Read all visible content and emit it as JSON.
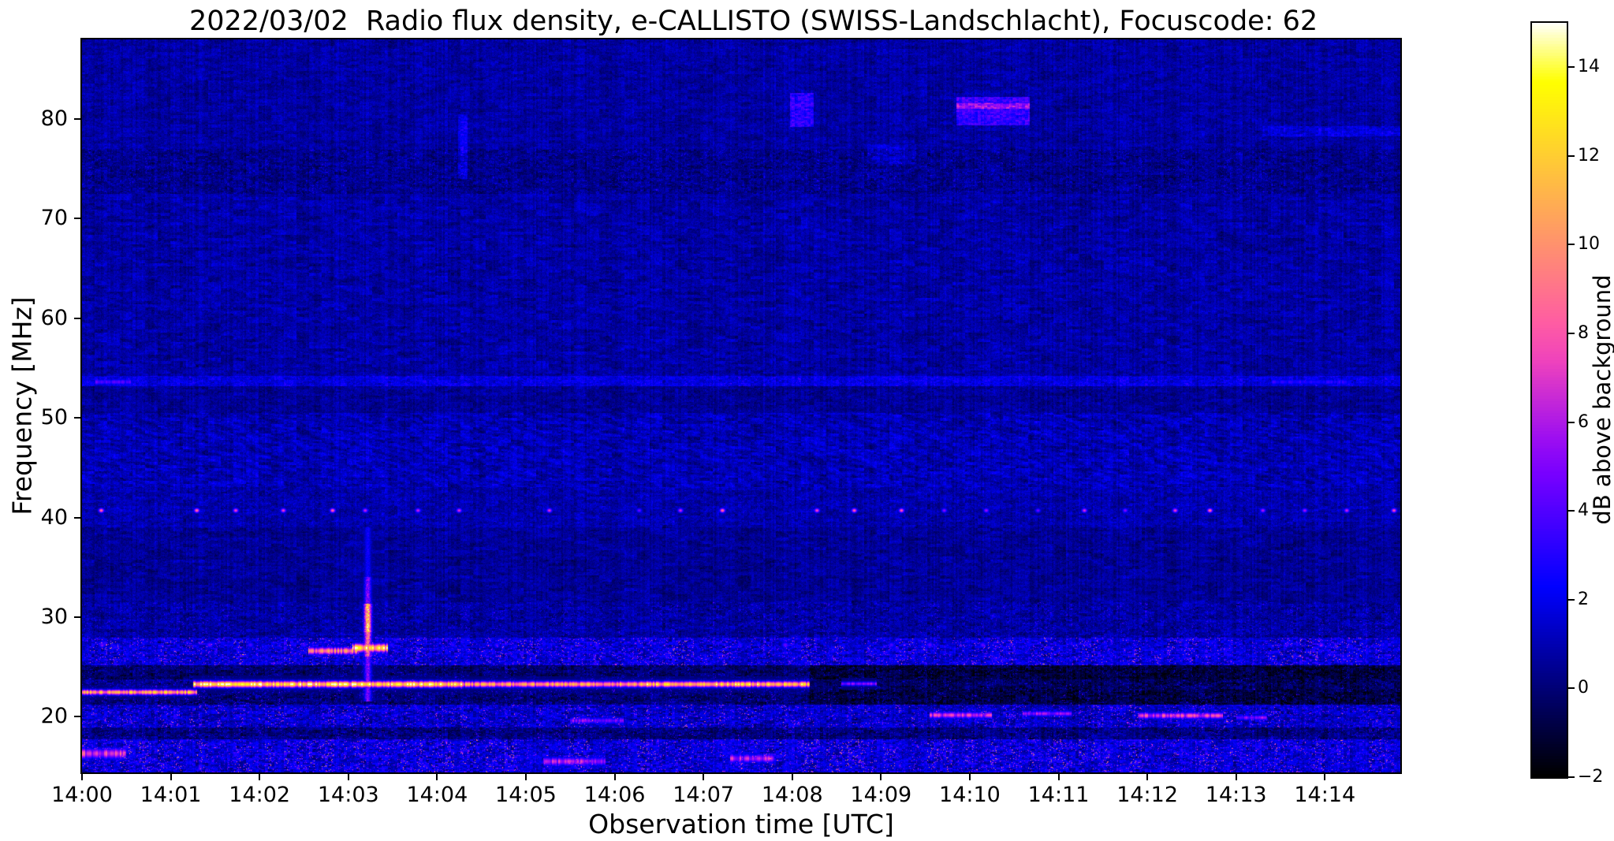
{
  "figure": {
    "title": "2022/03/02  Radio flux density, e-CALLISTO (SWISS-Landschlacht), Focuscode: 62",
    "xlabel": "Observation time [UTC]",
    "ylabel": "Frequency [MHz]",
    "colorbar_label": "dB above background",
    "text_color": "#000000",
    "background_color": "#ffffff"
  },
  "chart_data": {
    "type": "heatmap",
    "title": "2022/03/02  Radio flux density, e-CALLISTO (SWISS-Landschlacht), Focuscode: 62",
    "xlabel": "Observation time [UTC]",
    "ylabel": "Frequency [MHz]",
    "grid": false,
    "x_ticks": [
      "14:00",
      "14:01",
      "14:02",
      "14:03",
      "14:04",
      "14:05",
      "14:06",
      "14:07",
      "14:08",
      "14:09",
      "14:10",
      "14:11",
      "14:12",
      "14:13",
      "14:14"
    ],
    "x_tick_minutes": [
      0,
      1,
      2,
      3,
      4,
      5,
      6,
      7,
      8,
      9,
      10,
      11,
      12,
      13,
      14
    ],
    "x_range_minutes": [
      0,
      14.85
    ],
    "y_ticks": [
      20,
      30,
      40,
      50,
      60,
      70,
      80
    ],
    "y_range_mhz": [
      14.4,
      88.0
    ],
    "colorbar": {
      "label": "dB above background",
      "ticks": [
        14,
        12,
        10,
        8,
        6,
        4,
        2,
        0,
        -2
      ],
      "tick_labels": [
        "14",
        "12",
        "10",
        "8",
        "6",
        "4",
        "2",
        "0",
        "−2"
      ],
      "range_db": [
        -2,
        15
      ],
      "colormap": "gnuplot2",
      "stops": [
        [
          0.0,
          0,
          0,
          0
        ],
        [
          0.05,
          0,
          0,
          51
        ],
        [
          0.1,
          0,
          0,
          102
        ],
        [
          0.15,
          0,
          0,
          153
        ],
        [
          0.2,
          0,
          0,
          204
        ],
        [
          0.25,
          0,
          0,
          255
        ],
        [
          0.3,
          40,
          0,
          255
        ],
        [
          0.35,
          80,
          0,
          255
        ],
        [
          0.4,
          120,
          0,
          255
        ],
        [
          0.45,
          159,
          15,
          240
        ],
        [
          0.5,
          199,
          41,
          214
        ],
        [
          0.55,
          239,
          66,
          189
        ],
        [
          0.6,
          255,
          92,
          163
        ],
        [
          0.65,
          255,
          117,
          138
        ],
        [
          0.7,
          255,
          143,
          112
        ],
        [
          0.75,
          255,
          168,
          87
        ],
        [
          0.8,
          255,
          194,
          61
        ],
        [
          0.85,
          255,
          219,
          36
        ],
        [
          0.9,
          255,
          245,
          10
        ],
        [
          0.92,
          255,
          255,
          0
        ],
        [
          0.95,
          255,
          255,
          96
        ],
        [
          1.0,
          255,
          255,
          255
        ]
      ]
    },
    "noise": {
      "base": -0.45,
      "a1": 1.1,
      "a2": 0.75,
      "a3": 0.8,
      "col": 0.35
    },
    "regions": [
      {
        "f0": 14.4,
        "f1": 17.7,
        "dv": 0.7,
        "speckle": 2.8
      },
      {
        "f0": 17.7,
        "f1": 18.9,
        "dv": -0.8,
        "speckle": 1.2
      },
      {
        "f0": 18.9,
        "f1": 21.2,
        "dv": 0.4,
        "speckle": 2.2
      },
      {
        "f0": 21.2,
        "f1": 22.7,
        "dv": -1.0,
        "speckle": 1.3,
        "dark_after": 8.2
      },
      {
        "f0": 22.7,
        "f1": 23.7,
        "dv": -0.6,
        "speckle": 1.0,
        "dark_after": 8.2
      },
      {
        "f0": 23.7,
        "f1": 25.2,
        "dv": -1.1,
        "speckle": 0.9,
        "dark_after": 8.2
      },
      {
        "f0": 25.2,
        "f1": 27.9,
        "dv": 0.7,
        "speckle": 2.4
      },
      {
        "f0": 27.9,
        "f1": 31.5,
        "dv": -0.2,
        "speckle": 0.8
      },
      {
        "f0": 31.5,
        "f1": 39.0,
        "dv": -0.35,
        "speckle": 0
      },
      {
        "f0": 39.0,
        "f1": 43.0,
        "dv": 0.0,
        "speckle": 0.3
      },
      {
        "f0": 43.0,
        "f1": 50.5,
        "dv": 0.15,
        "speckle": 0.2
      },
      {
        "f0": 50.5,
        "f1": 53.2,
        "dv": -0.35,
        "speckle": 0
      },
      {
        "f0": 53.2,
        "f1": 54.2,
        "dv": 0.9,
        "speckle": 0.4
      },
      {
        "f0": 54.2,
        "f1": 72.5,
        "dv": -0.1,
        "speckle": 0
      },
      {
        "f0": 72.5,
        "f1": 77.0,
        "dv": -0.55,
        "speckle": 0.6
      },
      {
        "f0": 77.0,
        "f1": 88.0,
        "dv": -0.15,
        "speckle": 0
      }
    ],
    "ripples": [
      {
        "f0": 43.0,
        "f1": 50.5,
        "amp": 0.5,
        "fscale": 5.5,
        "tscale": 18
      },
      {
        "f0": 55.0,
        "f1": 72.0,
        "amp": 0.28,
        "fscale": 2.6,
        "tscale": 9
      },
      {
        "f0": 31.5,
        "f1": 39.0,
        "amp": 0.18,
        "fscale": 2.0,
        "tscale": 5
      }
    ],
    "hsegments": [
      {
        "f": 22.45,
        "t0": 0.0,
        "t1": 1.3,
        "amp": 10.5,
        "hw": 0.25
      },
      {
        "f": 23.25,
        "t0": 1.25,
        "t1": 4.3,
        "amp": 13.0,
        "hw": 0.3
      },
      {
        "f": 23.25,
        "t0": 4.3,
        "t1": 6.3,
        "amp": 10.0,
        "hw": 0.28
      },
      {
        "f": 23.25,
        "t0": 6.3,
        "t1": 8.2,
        "amp": 11.5,
        "hw": 0.28
      },
      {
        "f": 23.3,
        "t0": 8.55,
        "t1": 8.95,
        "amp": 5.0,
        "hw": 0.2
      },
      {
        "f": 20.15,
        "t0": 9.55,
        "t1": 10.25,
        "amp": 6.5,
        "hw": 0.3
      },
      {
        "f": 20.3,
        "t0": 10.6,
        "t1": 11.15,
        "amp": 5.5,
        "hw": 0.25
      },
      {
        "f": 20.1,
        "t0": 11.9,
        "t1": 12.85,
        "amp": 7.0,
        "hw": 0.3
      },
      {
        "f": 19.9,
        "t0": 13.0,
        "t1": 13.35,
        "amp": 5.0,
        "hw": 0.25
      },
      {
        "f": 26.6,
        "t0": 2.55,
        "t1": 3.1,
        "amp": 9.0,
        "hw": 0.35
      },
      {
        "f": 26.9,
        "t0": 3.05,
        "t1": 3.45,
        "amp": 12.0,
        "hw": 0.4
      },
      {
        "f": 53.6,
        "t0": 0.15,
        "t1": 0.55,
        "amp": 4.0,
        "hw": 0.3
      },
      {
        "f": 53.6,
        "t0": 13.4,
        "t1": 14.3,
        "amp": 3.0,
        "hw": 0.3
      },
      {
        "f": 16.3,
        "t0": 0.0,
        "t1": 0.5,
        "amp": 7.0,
        "hw": 0.5
      },
      {
        "f": 15.5,
        "t0": 5.2,
        "t1": 5.9,
        "amp": 6.0,
        "hw": 0.4
      },
      {
        "f": 15.8,
        "t0": 7.3,
        "t1": 7.8,
        "amp": 6.0,
        "hw": 0.4
      },
      {
        "f": 19.6,
        "t0": 5.5,
        "t1": 6.1,
        "amp": 5.0,
        "hw": 0.3
      }
    ],
    "dotlines": [
      {
        "freq": 40.7,
        "spacing": 0.5,
        "jitter": 0.3,
        "amp": 8.0,
        "hw": 0.22,
        "twidth": 0.03
      },
      {
        "freq": 27.2,
        "spacing": 0.55,
        "jitter": 0.4,
        "amp": 4.0,
        "hw": 0.3,
        "twidth": 0.04
      }
    ],
    "vburst": {
      "t": 3.22,
      "hw": 0.04,
      "parts": [
        {
          "f0": 21.5,
          "f1": 26.0,
          "amp": 5.0
        },
        {
          "f0": 26.0,
          "f1": 28.5,
          "amp": 9.0
        },
        {
          "f0": 28.5,
          "f1": 31.3,
          "amp": 12.0
        },
        {
          "f0": 31.3,
          "f1": 34.0,
          "amp": 5.0
        },
        {
          "f0": 34.0,
          "f1": 39.0,
          "amp": 2.5
        }
      ]
    },
    "rects": [
      {
        "t0": 7.98,
        "t1": 8.24,
        "f0": 79.2,
        "f1": 82.6,
        "dv": 2.4
      },
      {
        "t0": 9.85,
        "t1": 10.68,
        "f0": 79.4,
        "f1": 82.2,
        "dv": 2.6
      },
      {
        "t0": 9.85,
        "t1": 10.68,
        "f0": 81.0,
        "f1": 81.6,
        "dv": 2.0
      },
      {
        "t0": 4.24,
        "t1": 4.34,
        "f0": 74.0,
        "f1": 80.5,
        "dv": 1.3
      },
      {
        "t0": 13.3,
        "t1": 14.85,
        "f0": 78.3,
        "f1": 79.3,
        "dv": 1.0
      },
      {
        "t0": 8.85,
        "t1": 9.4,
        "f0": 75.5,
        "f1": 77.5,
        "dv": 0.7
      }
    ]
  }
}
